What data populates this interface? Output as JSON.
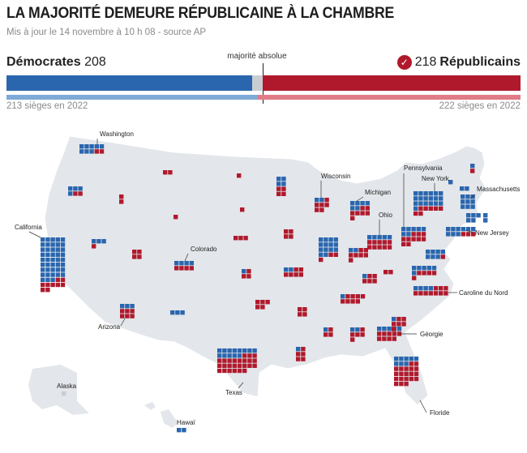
{
  "header": {
    "title": "LA MAJORITÉ DEMEURE RÉPUBLICAINE À LA CHAMBRE",
    "subtitle": "Mis à jour le 14 novembre à 10 h 08 - source AP"
  },
  "colors": {
    "dem": "#2a66ae",
    "rep": "#b0192c",
    "pending": "#c9cdd2",
    "dem_light": "#7fa9d6",
    "rep_light": "#e07c88",
    "land": "#e3e6ea"
  },
  "icons": {
    "winner": "check-circle-icon"
  },
  "chart_data": {
    "type": "bar",
    "total_seats": 435,
    "majority_label": "majorité absolue",
    "majority": 218,
    "parties": [
      {
        "name": "Démocrates",
        "seats": 208,
        "seats_text": "208",
        "previous_text": "213 sièges en 2022",
        "previous": 213
      },
      {
        "name": "Républicains",
        "seats": 218,
        "seats_text": "218",
        "previous_text": "222 sièges en 2022",
        "previous": 222
      }
    ],
    "pending": 9
  },
  "map": {
    "states": [
      {
        "name": "Washington",
        "dem": 8,
        "rep": 2,
        "pending": 0
      },
      {
        "name": "Wisconsin",
        "dem": 2,
        "rep": 6,
        "pending": 0
      },
      {
        "name": "Pennsylvania",
        "dem": 7,
        "rep": 10,
        "pending": 0
      },
      {
        "name": "New York",
        "dem": 19,
        "rep": 7,
        "pending": 0
      },
      {
        "name": "Massachusetts",
        "dem": 9,
        "rep": 0,
        "pending": 0
      },
      {
        "name": "Michigan",
        "dem": 6,
        "rep": 7,
        "pending": 0
      },
      {
        "name": "Ohio",
        "dem": 5,
        "rep": 10,
        "pending": 0
      },
      {
        "name": "New Jersey",
        "dem": 9,
        "rep": 3,
        "pending": 0
      },
      {
        "name": "California",
        "dem": 43,
        "rep": 9,
        "pending": 0
      },
      {
        "name": "Colorado",
        "dem": 4,
        "rep": 4,
        "pending": 0
      },
      {
        "name": "Caroline du Nord",
        "dem": 4,
        "rep": 10,
        "pending": 0
      },
      {
        "name": "Arizona",
        "dem": 3,
        "rep": 6,
        "pending": 0
      },
      {
        "name": "Géorgie",
        "dem": 5,
        "rep": 9,
        "pending": 0
      },
      {
        "name": "Texas",
        "dem": 13,
        "rep": 25,
        "pending": 0
      },
      {
        "name": "Alaska",
        "dem": 0,
        "rep": 0,
        "pending": 1
      },
      {
        "name": "Floride",
        "dem": 8,
        "rep": 20,
        "pending": 0
      },
      {
        "name": "Hawaï",
        "dem": 2,
        "rep": 0,
        "pending": 0
      }
    ]
  }
}
